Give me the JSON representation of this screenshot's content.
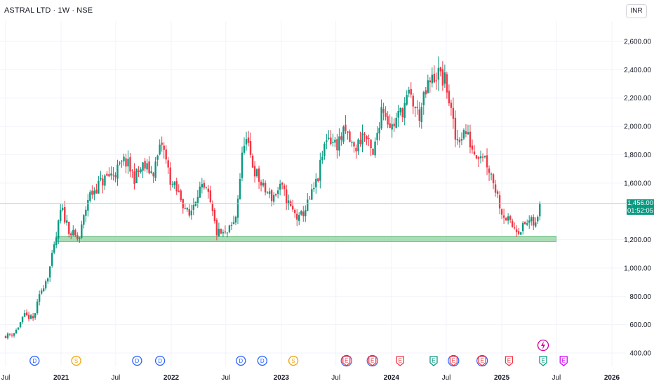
{
  "header": {
    "title": "ASTRAL LTD · 1W · NSE",
    "currency": "INR"
  },
  "price_tag": {
    "price": "1,456.00",
    "countdown": "01:52:05"
  },
  "colors": {
    "up": "#089981",
    "down": "#f23645",
    "support_zone": "#8fd19e",
    "current_line": "#9ed8cd"
  },
  "chart_data": {
    "type": "candlestick",
    "title": "ASTRAL LTD · 1W · NSE",
    "ylim": [
      370,
      2700
    ],
    "y_ticks": [
      2600,
      2400,
      2200,
      2000,
      1800,
      1600,
      1200,
      1000,
      800,
      600,
      400
    ],
    "y_tick_labels": [
      "2,600.00",
      "2,400.00",
      "2,200.00",
      "2,000.00",
      "1,800.00",
      "1,600.00",
      "1,200.00",
      "1,000.00",
      "800.00",
      "600.00",
      "400.00"
    ],
    "x_ticks": [
      {
        "label": "Jul",
        "date": "2020-07-01",
        "bold": false
      },
      {
        "label": "2021",
        "date": "2021-01-01",
        "bold": true
      },
      {
        "label": "Jul",
        "date": "2021-07-01",
        "bold": false
      },
      {
        "label": "2022",
        "date": "2022-01-01",
        "bold": true
      },
      {
        "label": "Jul",
        "date": "2022-07-01",
        "bold": false
      },
      {
        "label": "2023",
        "date": "2023-01-01",
        "bold": true
      },
      {
        "label": "Jul",
        "date": "2023-07-01",
        "bold": false
      },
      {
        "label": "2024",
        "date": "2024-01-01",
        "bold": true
      },
      {
        "label": "Jul",
        "date": "2024-07-01",
        "bold": false
      },
      {
        "label": "2025",
        "date": "2025-01-01",
        "bold": true
      },
      {
        "label": "Jul",
        "date": "2025-07-01",
        "bold": false
      },
      {
        "label": "2026",
        "date": "2026-01-01",
        "bold": true
      }
    ],
    "last_price": 1456,
    "support_zone": {
      "low": 1185,
      "high": 1225,
      "from": "2020-12-15",
      "to": "2025-06-30"
    },
    "anchors": [
      [
        "2020-07-01",
        520
      ],
      [
        "2020-08-01",
        545
      ],
      [
        "2020-09-01",
        665
      ],
      [
        "2020-10-01",
        640
      ],
      [
        "2020-10-25",
        830
      ],
      [
        "2020-11-20",
        960
      ],
      [
        "2020-12-15",
        1200
      ],
      [
        "2021-01-01",
        1420
      ],
      [
        "2021-02-01",
        1250
      ],
      [
        "2021-03-01",
        1195
      ],
      [
        "2021-04-01",
        1500
      ],
      [
        "2021-05-01",
        1580
      ],
      [
        "2021-06-01",
        1640
      ],
      [
        "2021-07-01",
        1680
      ],
      [
        "2021-08-01",
        1760
      ],
      [
        "2021-09-01",
        1640
      ],
      [
        "2021-10-01",
        1720
      ],
      [
        "2021-11-01",
        1670
      ],
      [
        "2021-12-01",
        1880
      ],
      [
        "2022-01-01",
        1600
      ],
      [
        "2022-02-01",
        1500
      ],
      [
        "2022-03-01",
        1360
      ],
      [
        "2022-04-01",
        1560
      ],
      [
        "2022-05-01",
        1530
      ],
      [
        "2022-06-01",
        1250
      ],
      [
        "2022-07-01",
        1230
      ],
      [
        "2022-08-01",
        1330
      ],
      [
        "2022-09-01",
        1930
      ],
      [
        "2022-10-01",
        1710
      ],
      [
        "2022-11-01",
        1560
      ],
      [
        "2022-12-01",
        1500
      ],
      [
        "2023-01-01",
        1570
      ],
      [
        "2023-02-01",
        1420
      ],
      [
        "2023-03-01",
        1340
      ],
      [
        "2023-04-01",
        1460
      ],
      [
        "2023-05-01",
        1620
      ],
      [
        "2023-06-01",
        1940
      ],
      [
        "2023-07-01",
        1870
      ],
      [
        "2023-08-01",
        1960
      ],
      [
        "2023-09-01",
        1830
      ],
      [
        "2023-10-01",
        1960
      ],
      [
        "2023-11-01",
        1780
      ],
      [
        "2023-12-01",
        2160
      ],
      [
        "2024-01-01",
        1990
      ],
      [
        "2024-02-01",
        2100
      ],
      [
        "2024-03-01",
        2220
      ],
      [
        "2024-04-01",
        2070
      ],
      [
        "2024-05-01",
        2280
      ],
      [
        "2024-06-01",
        2380
      ],
      [
        "2024-07-01",
        2300
      ],
      [
        "2024-08-01",
        1900
      ],
      [
        "2024-09-01",
        1970
      ],
      [
        "2024-10-01",
        1820
      ],
      [
        "2024-11-01",
        1810
      ],
      [
        "2024-12-01",
        1640
      ],
      [
        "2025-01-01",
        1400
      ],
      [
        "2025-02-01",
        1300
      ],
      [
        "2025-03-01",
        1270
      ],
      [
        "2025-04-01",
        1330
      ],
      [
        "2025-04-25",
        1300
      ],
      [
        "2025-05-10",
        1456
      ]
    ],
    "events": [
      {
        "type": "D",
        "date": "2020-10-05",
        "color": "#2962ff",
        "label": "D"
      },
      {
        "type": "S",
        "date": "2021-02-20",
        "color": "#f0a30a",
        "label": "S"
      },
      {
        "type": "D",
        "date": "2021-09-10",
        "color": "#2962ff",
        "label": "D"
      },
      {
        "type": "D",
        "date": "2021-11-25",
        "color": "#2962ff",
        "label": "D"
      },
      {
        "type": "D",
        "date": "2022-08-20",
        "color": "#2962ff",
        "label": "D"
      },
      {
        "type": "D",
        "date": "2022-10-30",
        "color": "#2962ff",
        "label": "D"
      },
      {
        "type": "S",
        "date": "2023-02-10",
        "color": "#f0a30a",
        "label": "S"
      },
      {
        "type": "E",
        "date": "2023-08-05",
        "color": "#f23645",
        "label": "E",
        "ring": "#2962ff"
      },
      {
        "type": "E",
        "date": "2023-10-30",
        "color": "#f23645",
        "label": "E",
        "ring": "#2962ff"
      },
      {
        "type": "E",
        "date": "2024-01-30",
        "color": "#f23645",
        "label": "E"
      },
      {
        "type": "E",
        "date": "2024-05-20",
        "color": "#089981",
        "label": "E"
      },
      {
        "type": "E",
        "date": "2024-07-25",
        "color": "#f23645",
        "label": "E",
        "ring": "#2962ff"
      },
      {
        "type": "E",
        "date": "2024-10-28",
        "color": "#f23645",
        "label": "E",
        "ring": "#2962ff"
      },
      {
        "type": "E",
        "date": "2025-01-25",
        "color": "#f23645",
        "label": "E"
      },
      {
        "type": "E",
        "date": "2025-05-18",
        "color": "#089981",
        "label": "E",
        "lightning": "#d1009a"
      },
      {
        "type": "E",
        "date": "2025-07-25",
        "color": "#d500f9",
        "label": "E"
      }
    ]
  }
}
